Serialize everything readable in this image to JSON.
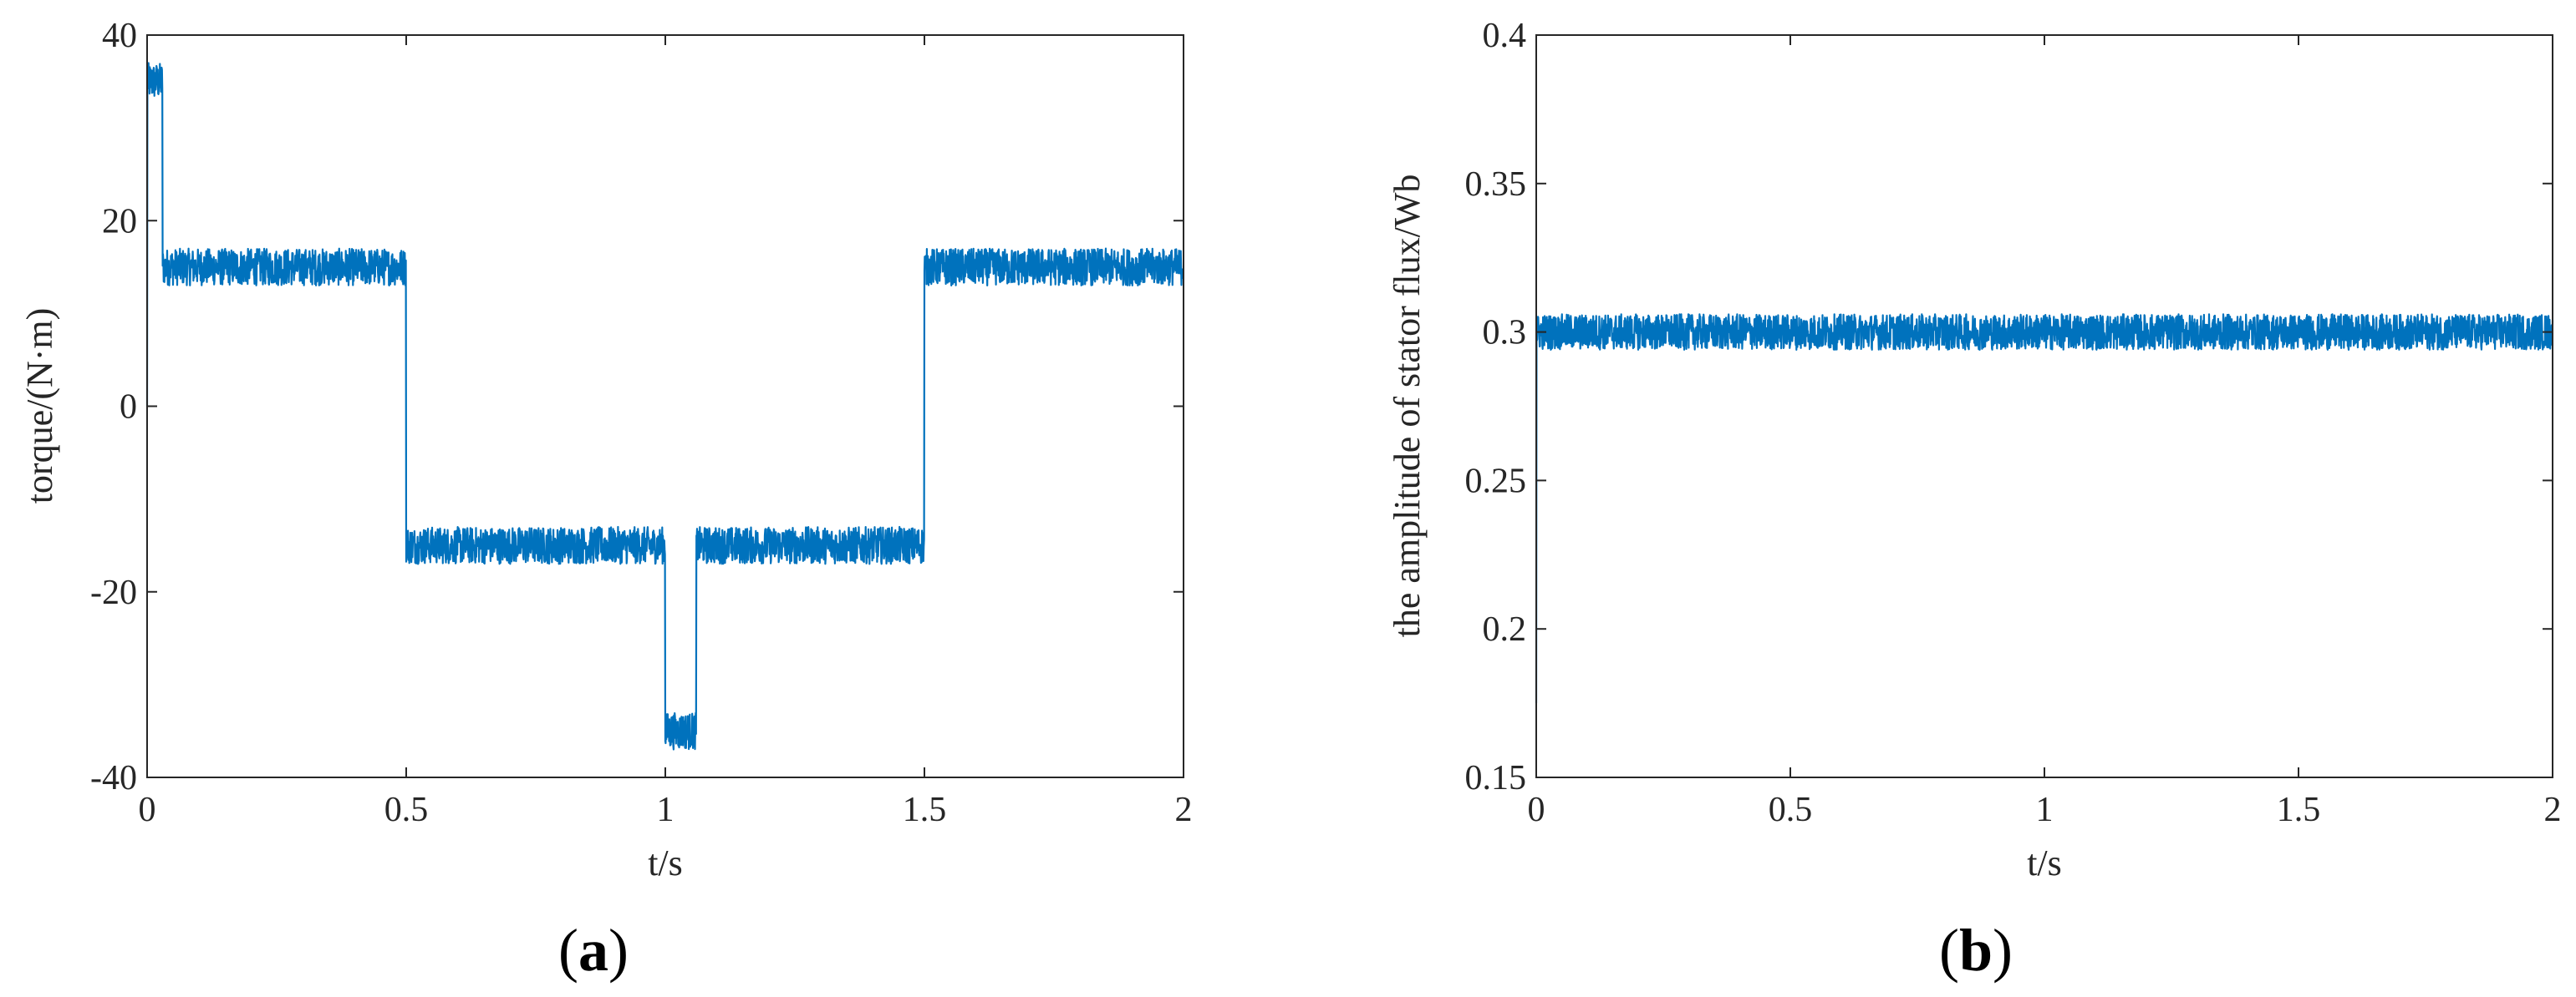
{
  "chart_data": [
    {
      "type": "line",
      "panel_label": "(a)",
      "panel_letter": "a",
      "title": "",
      "xlabel": "t/s",
      "ylabel": "torque/(N·m)",
      "xlim": [
        0,
        2
      ],
      "ylim": [
        -40,
        40
      ],
      "xticks": [
        0,
        0.5,
        1,
        1.5,
        2
      ],
      "xtick_labels": [
        "0",
        "0.5",
        "1",
        "1.5",
        "2"
      ],
      "yticks": [
        -40,
        -20,
        0,
        20,
        40
      ],
      "ytick_labels": [
        "-40",
        "-20",
        "0",
        "20",
        "40"
      ],
      "grid": false,
      "color": "#0072BD",
      "series": [
        {
          "noise_amplitude": 2.0,
          "segments": [
            {
              "t0": 0.0,
              "t1": 0.03,
              "value": 35
            },
            {
              "t0": 0.03,
              "t1": 0.5,
              "value": 15
            },
            {
              "t0": 0.5,
              "t1": 1.0,
              "value": -15
            },
            {
              "t0": 1.0,
              "t1": 1.06,
              "value": -35
            },
            {
              "t0": 1.06,
              "t1": 1.5,
              "value": -15
            },
            {
              "t0": 1.5,
              "t1": 2.0,
              "value": 15
            }
          ],
          "start_value": 0
        }
      ]
    },
    {
      "type": "line",
      "panel_label": "(b)",
      "panel_letter": "b",
      "title": "",
      "xlabel": "t/s",
      "ylabel": "the amplitude of stator flux/Wb",
      "xlim": [
        0,
        2
      ],
      "ylim": [
        0.15,
        0.4
      ],
      "xticks": [
        0,
        0.5,
        1,
        1.5,
        2
      ],
      "xtick_labels": [
        "0",
        "0.5",
        "1",
        "1.5",
        "2"
      ],
      "yticks": [
        0.15,
        0.2,
        0.25,
        0.3,
        0.35,
        0.4
      ],
      "ytick_labels": [
        "0.15",
        "0.2",
        "0.25",
        "0.3",
        "0.35",
        "0.4"
      ],
      "grid": false,
      "color": "#0072BD",
      "series": [
        {
          "noise_amplitude": 0.006,
          "segments": [
            {
              "t0": 0.0,
              "t1": 2.0,
              "value": 0.3
            }
          ],
          "start_value": 0.175
        }
      ]
    }
  ]
}
